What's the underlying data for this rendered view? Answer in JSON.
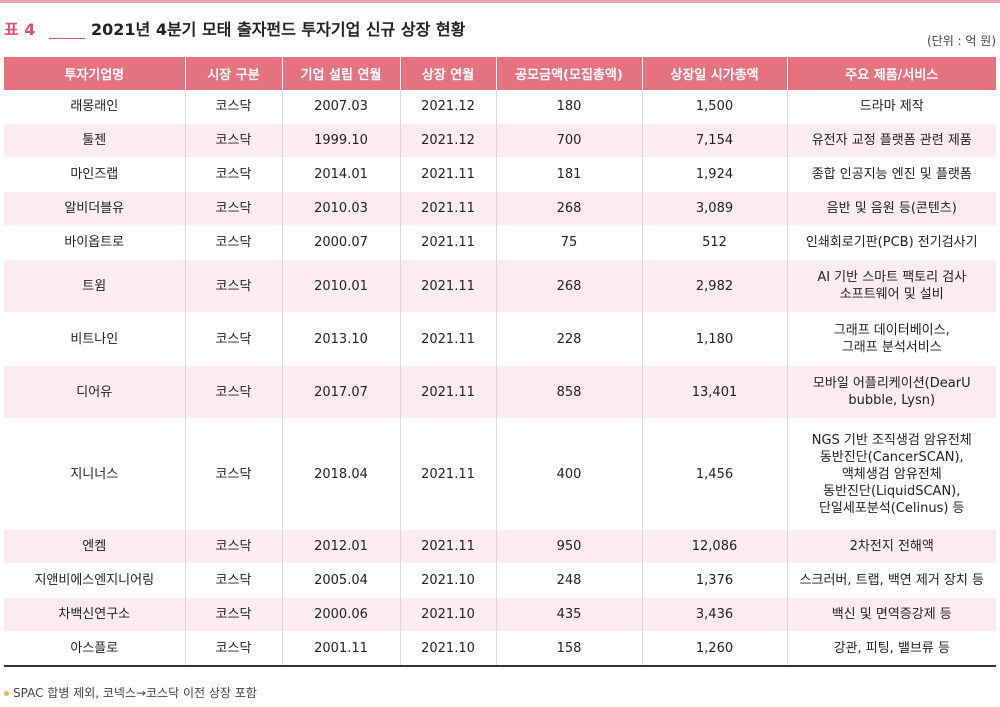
{
  "header": {
    "label": "표 4",
    "title": "2021년 4분기 모태 출자펀드 투자기업 신규 상장 현황",
    "unit": "(단위 : 억 원)"
  },
  "table": {
    "columns": [
      "투자기업명",
      "시장 구분",
      "기업 설립 연월",
      "상장 연월",
      "공모금액(모집총액)",
      "상장일 시가총액",
      "주요 제품/서비스"
    ],
    "rows": [
      [
        "래몽래인",
        "코스닥",
        "2007.03",
        "2021.12",
        "180",
        "1,500",
        "드라마 제작"
      ],
      [
        "툴젠",
        "코스닥",
        "1999.10",
        "2021.12",
        "700",
        "7,154",
        "유전자 교정 플랫폼 관련 제품"
      ],
      [
        "마인즈랩",
        "코스닥",
        "2014.01",
        "2021.11",
        "181",
        "1,924",
        "종합 인공지능 엔진 및 플랫폼"
      ],
      [
        "알비더블유",
        "코스닥",
        "2010.03",
        "2021.11",
        "268",
        "3,089",
        "음반 및 음원 등(콘텐츠)"
      ],
      [
        "바이옵트로",
        "코스닥",
        "2000.07",
        "2021.11",
        "75",
        "512",
        "인쇄회로기판(PCB) 전기검사기"
      ],
      [
        "트윔",
        "코스닥",
        "2010.01",
        "2021.11",
        "268",
        "2,982",
        "AI 기반 스마트 팩토리 검사\n소프트웨어 및 설비"
      ],
      [
        "비트나인",
        "코스닥",
        "2013.10",
        "2021.11",
        "228",
        "1,180",
        "그래프 데이터베이스,\n그래프 분석서비스"
      ],
      [
        "디어유",
        "코스닥",
        "2017.07",
        "2021.11",
        "858",
        "13,401",
        "모바일 어플리케이션(DearU\nbubble, Lysn)"
      ],
      [
        "지니너스",
        "코스닥",
        "2018.04",
        "2021.11",
        "400",
        "1,456",
        "NGS 기반 조직생검 암유전체\n동반진단(CancerSCAN),\n액체생검 암유전체\n동반진단(LiquidSCAN),\n단일세포분석(Celinus) 등"
      ],
      [
        "엔켐",
        "코스닥",
        "2012.01",
        "2021.11",
        "950",
        "12,086",
        "2차전지 전해액"
      ],
      [
        "지앤비에스엔지니어링",
        "코스닥",
        "2005.04",
        "2021.10",
        "248",
        "1,376",
        "스크러버, 트랩, 백연 제거 장치 등"
      ],
      [
        "차백신연구소",
        "코스닥",
        "2000.06",
        "2021.10",
        "435",
        "3,436",
        "백신 및 면역증강제 등"
      ],
      [
        "아스플로",
        "코스닥",
        "2001.11",
        "2021.10",
        "158",
        "1,260",
        "강관, 피팅, 밸브류 등"
      ]
    ]
  },
  "footnote": "SPAC 합병 제외, 코넥스→코스닥 이전 상장 포함"
}
